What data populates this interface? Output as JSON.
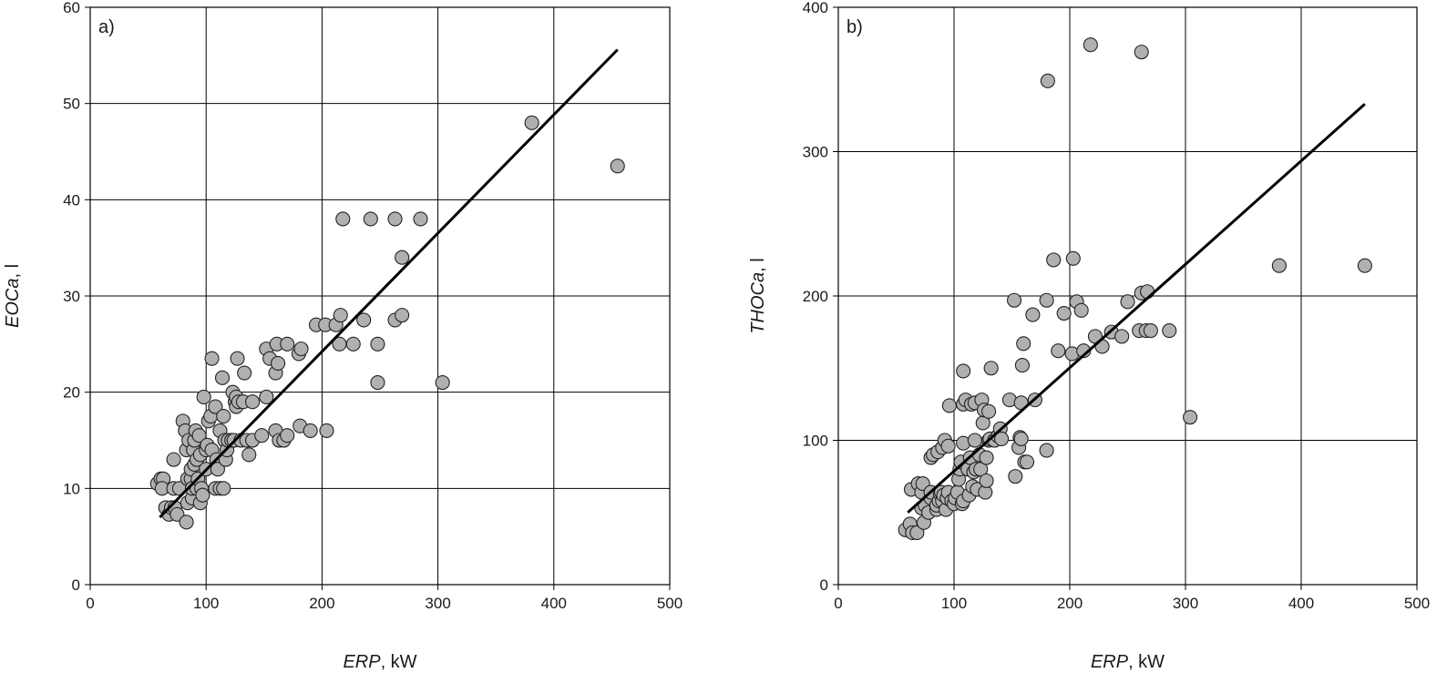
{
  "chart_data": [
    {
      "type": "scatter",
      "panel_label": "a)",
      "xlabel_italic": "ERP",
      "xlabel_rest": ", kW",
      "ylabel_italic": "EOCa",
      "ylabel_rest": ", l",
      "xlim": [
        0,
        500
      ],
      "ylim": [
        0,
        60
      ],
      "xticks": [
        0,
        100,
        200,
        300,
        400,
        500
      ],
      "yticks": [
        0,
        10,
        20,
        30,
        40,
        50,
        60
      ],
      "grid": true,
      "trendline": [
        [
          60,
          7
        ],
        [
          455,
          55.6
        ]
      ],
      "points": [
        [
          58,
          10.5
        ],
        [
          61,
          11
        ],
        [
          63,
          11
        ],
        [
          62,
          10
        ],
        [
          65,
          8
        ],
        [
          68,
          7.3
        ],
        [
          70,
          8
        ],
        [
          73,
          8
        ],
        [
          72,
          10
        ],
        [
          75,
          7.3
        ],
        [
          72,
          13
        ],
        [
          77,
          10
        ],
        [
          80,
          17
        ],
        [
          82,
          16
        ],
        [
          83,
          14
        ],
        [
          83,
          6.5
        ],
        [
          84,
          8.5
        ],
        [
          84,
          11
        ],
        [
          85,
          15
        ],
        [
          87,
          11
        ],
        [
          87,
          12
        ],
        [
          88,
          9
        ],
        [
          88,
          10
        ],
        [
          89,
          14
        ],
        [
          90,
          12.5
        ],
        [
          90,
          15
        ],
        [
          91,
          16
        ],
        [
          92,
          10
        ],
        [
          92,
          13
        ],
        [
          93,
          11
        ],
        [
          94,
          15.5
        ],
        [
          95,
          8.5
        ],
        [
          95,
          13.5
        ],
        [
          96,
          10
        ],
        [
          97,
          9.3
        ],
        [
          98,
          19.5
        ],
        [
          100,
          12
        ],
        [
          100,
          14
        ],
        [
          101,
          14.5
        ],
        [
          102,
          17
        ],
        [
          104,
          17.5
        ],
        [
          105,
          14
        ],
        [
          105,
          23.5
        ],
        [
          108,
          18.5
        ],
        [
          108,
          10
        ],
        [
          109,
          13
        ],
        [
          110,
          12
        ],
        [
          112,
          16
        ],
        [
          112,
          10
        ],
        [
          114,
          21.5
        ],
        [
          115,
          17.5
        ],
        [
          115,
          10
        ],
        [
          116,
          15
        ],
        [
          117,
          13
        ],
        [
          118,
          14
        ],
        [
          119,
          15
        ],
        [
          122,
          15
        ],
        [
          123,
          20
        ],
        [
          124,
          15
        ],
        [
          125,
          19
        ],
        [
          126,
          19.5
        ],
        [
          126,
          18.5
        ],
        [
          127,
          23.5
        ],
        [
          128,
          19
        ],
        [
          130,
          15
        ],
        [
          132,
          19
        ],
        [
          133,
          22
        ],
        [
          135,
          15
        ],
        [
          137,
          13.5
        ],
        [
          140,
          15
        ],
        [
          140,
          19
        ],
        [
          148,
          15.5
        ],
        [
          152,
          19.5
        ],
        [
          152,
          24.5
        ],
        [
          155,
          23.5
        ],
        [
          160,
          16
        ],
        [
          160,
          22
        ],
        [
          161,
          25
        ],
        [
          162,
          23
        ],
        [
          163,
          15
        ],
        [
          167,
          15
        ],
        [
          170,
          15.5
        ],
        [
          170,
          25
        ],
        [
          180,
          24
        ],
        [
          181,
          16.5
        ],
        [
          182,
          24.5
        ],
        [
          190,
          16
        ],
        [
          195,
          27
        ],
        [
          203,
          27
        ],
        [
          204,
          16
        ],
        [
          212,
          27
        ],
        [
          215,
          25
        ],
        [
          216,
          28
        ],
        [
          218,
          38
        ],
        [
          227,
          25
        ],
        [
          236,
          27.5
        ],
        [
          242,
          38
        ],
        [
          248,
          25
        ],
        [
          248,
          21
        ],
        [
          263,
          27.5
        ],
        [
          263,
          38
        ],
        [
          269,
          34
        ],
        [
          269,
          28
        ],
        [
          285,
          38
        ],
        [
          304,
          21
        ],
        [
          381,
          48
        ],
        [
          455,
          43.5
        ]
      ]
    },
    {
      "type": "scatter",
      "panel_label": "b)",
      "xlabel_italic": "ERP",
      "xlabel_rest": ", kW",
      "ylabel_italic": "THOCa",
      "ylabel_rest": ", l",
      "xlim": [
        0,
        500
      ],
      "ylim": [
        0,
        400
      ],
      "xticks": [
        0,
        100,
        200,
        300,
        400,
        500
      ],
      "yticks": [
        0,
        100,
        200,
        300,
        400
      ],
      "grid": true,
      "trendline": [
        [
          60,
          50
        ],
        [
          455,
          333
        ]
      ],
      "points": [
        [
          58,
          38
        ],
        [
          62,
          42
        ],
        [
          63,
          66
        ],
        [
          64,
          36
        ],
        [
          68,
          36
        ],
        [
          69,
          70
        ],
        [
          72,
          53
        ],
        [
          72,
          64
        ],
        [
          73,
          70
        ],
        [
          74,
          43
        ],
        [
          75,
          55
        ],
        [
          78,
          50
        ],
        [
          80,
          60
        ],
        [
          80,
          64
        ],
        [
          80,
          88
        ],
        [
          82,
          90
        ],
        [
          85,
          52
        ],
        [
          85,
          55
        ],
        [
          86,
          92
        ],
        [
          87,
          58
        ],
        [
          88,
          63
        ],
        [
          89,
          64
        ],
        [
          90,
          95
        ],
        [
          90,
          58
        ],
        [
          91,
          62
        ],
        [
          92,
          100
        ],
        [
          93,
          52
        ],
        [
          94,
          60
        ],
        [
          95,
          64
        ],
        [
          95,
          96
        ],
        [
          96,
          124
        ],
        [
          98,
          58
        ],
        [
          100,
          56
        ],
        [
          101,
          60
        ],
        [
          103,
          64
        ],
        [
          104,
          73
        ],
        [
          105,
          80
        ],
        [
          106,
          85
        ],
        [
          107,
          56
        ],
        [
          108,
          58
        ],
        [
          108,
          98
        ],
        [
          108,
          125
        ],
        [
          108,
          148
        ],
        [
          110,
          128
        ],
        [
          112,
          80
        ],
        [
          113,
          62
        ],
        [
          114,
          88
        ],
        [
          115,
          125
        ],
        [
          116,
          68
        ],
        [
          117,
          78
        ],
        [
          118,
          100
        ],
        [
          118,
          126
        ],
        [
          119,
          80
        ],
        [
          120,
          66
        ],
        [
          122,
          90
        ],
        [
          123,
          80
        ],
        [
          124,
          128
        ],
        [
          125,
          112
        ],
        [
          126,
          121
        ],
        [
          127,
          64
        ],
        [
          128,
          88
        ],
        [
          128,
          72
        ],
        [
          130,
          120
        ],
        [
          130,
          100
        ],
        [
          131,
          101
        ],
        [
          132,
          150
        ],
        [
          135,
          100
        ],
        [
          138,
          103
        ],
        [
          140,
          108
        ],
        [
          141,
          101
        ],
        [
          148,
          128
        ],
        [
          152,
          197
        ],
        [
          153,
          75
        ],
        [
          156,
          95
        ],
        [
          157,
          102
        ],
        [
          158,
          126
        ],
        [
          158,
          101
        ],
        [
          159,
          152
        ],
        [
          160,
          167
        ],
        [
          161,
          85
        ],
        [
          163,
          85
        ],
        [
          168,
          187
        ],
        [
          170,
          128
        ],
        [
          180,
          197
        ],
        [
          180,
          93
        ],
        [
          181,
          349
        ],
        [
          186,
          225
        ],
        [
          190,
          162
        ],
        [
          195,
          188
        ],
        [
          202,
          160
        ],
        [
          203,
          226
        ],
        [
          206,
          196
        ],
        [
          210,
          190
        ],
        [
          212,
          162
        ],
        [
          218,
          374
        ],
        [
          222,
          172
        ],
        [
          228,
          165
        ],
        [
          236,
          175
        ],
        [
          245,
          172
        ],
        [
          250,
          196
        ],
        [
          260,
          176
        ],
        [
          262,
          202
        ],
        [
          262,
          369
        ],
        [
          266,
          176
        ],
        [
          267,
          203
        ],
        [
          270,
          176
        ],
        [
          286,
          176
        ],
        [
          304,
          116
        ],
        [
          381,
          221
        ],
        [
          455,
          221
        ]
      ]
    }
  ]
}
